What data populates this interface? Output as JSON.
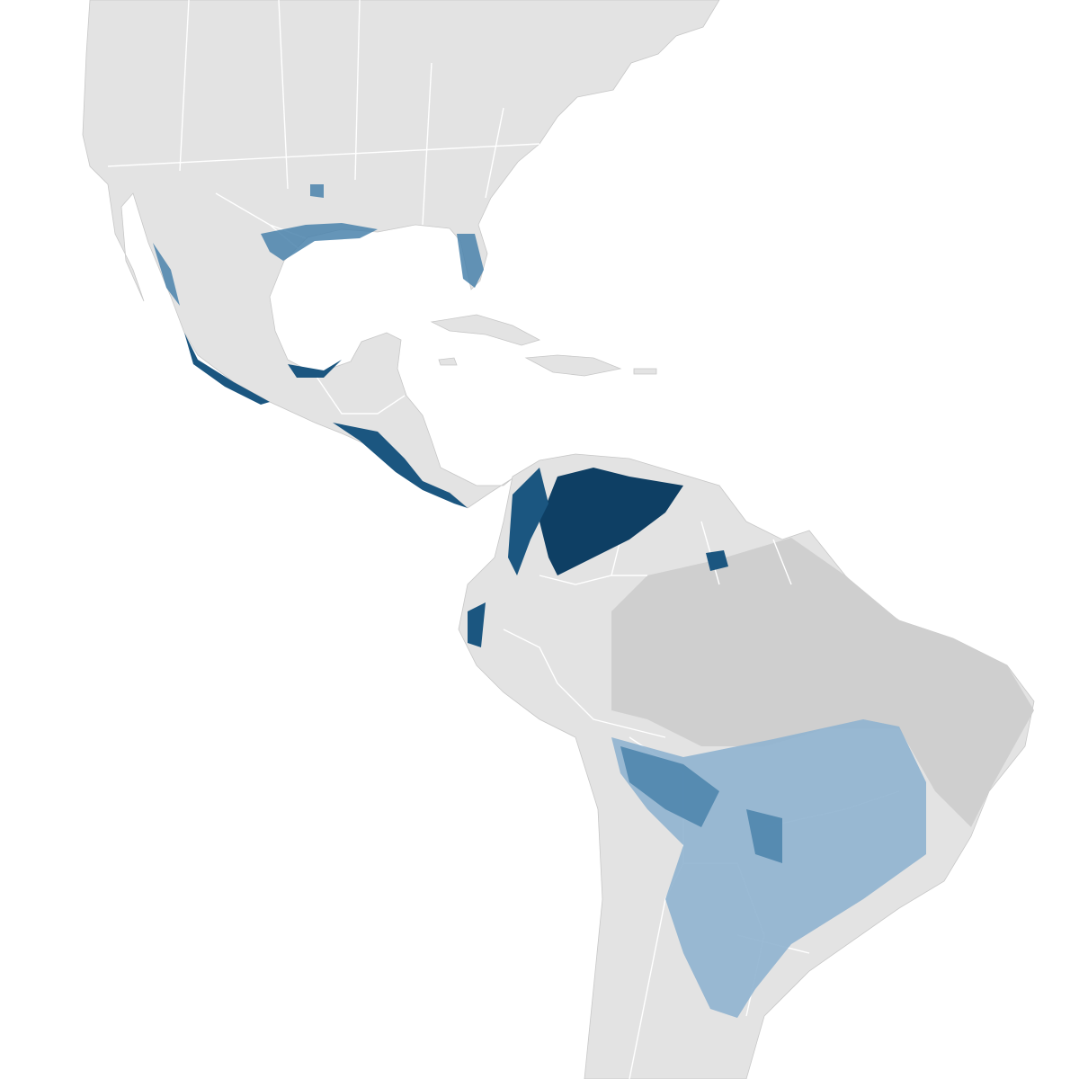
{
  "map": {
    "colors": {
      "ocean": "#ffffff",
      "land": "#e3e3e3",
      "nonbreeding_region": "#cfcfcf",
      "coastline": "#c8c8c8",
      "borders": "#ffffff",
      "abundance_low": "#8fb3cf",
      "abundance_mid": "#4a82ab",
      "abundance_high": "#1b5680",
      "abundance_max": "#0e3f64"
    }
  }
}
